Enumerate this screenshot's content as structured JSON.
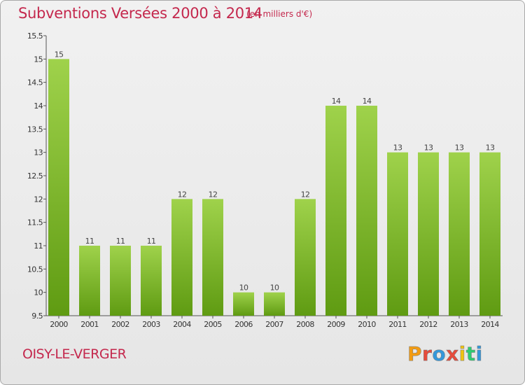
{
  "header": {
    "title": "Subventions Versées 2000 à 2014",
    "unit": "(en milliers d'€)"
  },
  "footer": {
    "commune": "OISY-LE-VERGER",
    "logo": "Proxiti"
  },
  "colors": {
    "title": "#c4284d",
    "bar_light": "#9fd24b",
    "bar_dark": "#5f9b12"
  },
  "chart_data": {
    "type": "bar",
    "title": "Subventions Versées 2000 à 2014",
    "xlabel": "",
    "ylabel": "",
    "categories": [
      "2000",
      "2001",
      "2002",
      "2003",
      "2004",
      "2005",
      "2006",
      "2007",
      "2008",
      "2009",
      "2010",
      "2011",
      "2012",
      "2013",
      "2014"
    ],
    "values": [
      15,
      11,
      11,
      11,
      12,
      12,
      10,
      10,
      12,
      14,
      14,
      13,
      13,
      13,
      13
    ],
    "value_labels": [
      "15",
      "11",
      "11",
      "11",
      "12",
      "12",
      "10",
      "10",
      "12",
      "14",
      "14",
      "13",
      "13",
      "13",
      "13"
    ],
    "ylim": [
      9.5,
      15.5
    ],
    "yticks": [
      9.5,
      10,
      10.5,
      11,
      11.5,
      12,
      12.5,
      13,
      13.5,
      14,
      14.5,
      15,
      15.5
    ],
    "ytick_labels": [
      "9.5",
      "10",
      "10.5",
      "11",
      "11.5",
      "12",
      "12.5",
      "13",
      "13.5",
      "14",
      "14.5",
      "15",
      "15.5"
    ],
    "grid": false,
    "legend": "none"
  }
}
